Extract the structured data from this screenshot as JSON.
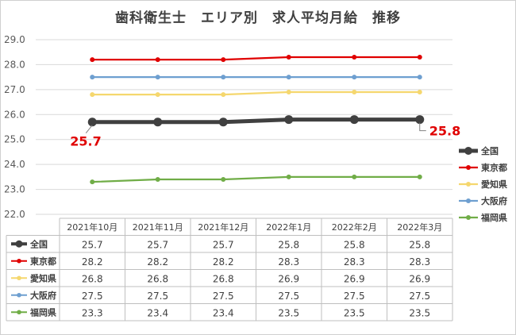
{
  "chart_data": {
    "type": "line",
    "title": "歯科衛生士　エリア別　求人平均月給　推移",
    "categories": [
      "2021年10月",
      "2021年11月",
      "2021年12月",
      "2022年1月",
      "2022年2月",
      "2022年3月"
    ],
    "ylim": [
      22.0,
      29.0
    ],
    "yticks": [
      "22.0",
      "23.0",
      "24.0",
      "25.0",
      "26.0",
      "27.0",
      "28.0",
      "29.0"
    ],
    "grid": true,
    "legend_position": "right",
    "series": [
      {
        "name": "全国",
        "color": "#404040",
        "values": [
          25.7,
          25.7,
          25.7,
          25.8,
          25.8,
          25.8
        ],
        "display": [
          "25.7",
          "25.7",
          "25.7",
          "25.8",
          "25.8",
          "25.8"
        ]
      },
      {
        "name": "東京都",
        "color": "#e00000",
        "values": [
          28.2,
          28.2,
          28.2,
          28.3,
          28.3,
          28.3
        ],
        "display": [
          "28.2",
          "28.2",
          "28.2",
          "28.3",
          "28.3",
          "28.3"
        ]
      },
      {
        "name": "愛知県",
        "color": "#f5d76e",
        "values": [
          26.8,
          26.8,
          26.8,
          26.9,
          26.9,
          26.9
        ],
        "display": [
          "26.8",
          "26.8",
          "26.8",
          "26.9",
          "26.9",
          "26.9"
        ]
      },
      {
        "name": "大阪府",
        "color": "#6e9fd0",
        "values": [
          27.5,
          27.5,
          27.5,
          27.5,
          27.5,
          27.5
        ],
        "display": [
          "27.5",
          "27.5",
          "27.5",
          "27.5",
          "27.5",
          "27.5"
        ]
      },
      {
        "name": "福岡県",
        "color": "#70ad47",
        "values": [
          23.3,
          23.4,
          23.4,
          23.5,
          23.5,
          23.5
        ],
        "display": [
          "23.3",
          "23.4",
          "23.4",
          "23.5",
          "23.5",
          "23.5"
        ]
      }
    ],
    "annotations": [
      {
        "series": 0,
        "index": 0,
        "text": "25.7"
      },
      {
        "series": 0,
        "index": 5,
        "text": "25.8"
      }
    ]
  }
}
